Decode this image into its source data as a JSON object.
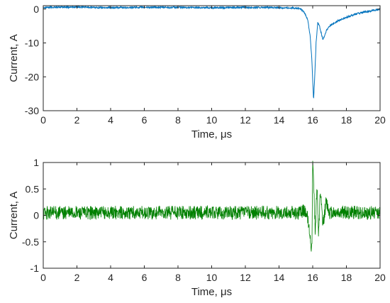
{
  "chart_data": [
    {
      "type": "line",
      "xlabel": "Time, μs",
      "ylabel": "Current, A",
      "xlim": [
        0,
        20
      ],
      "ylim": [
        -30,
        1
      ],
      "xticks": [
        0,
        2,
        4,
        6,
        8,
        10,
        12,
        14,
        16,
        18,
        20
      ],
      "yticks": [
        0,
        -10,
        -20,
        -30
      ],
      "grid": false,
      "series": [
        {
          "color": "#0072BD",
          "x": [
            0,
            2,
            4,
            6,
            8,
            10,
            12,
            14,
            15.0,
            15.3,
            15.5,
            15.7,
            15.85,
            15.95,
            16.05,
            16.12,
            16.2,
            16.3,
            16.4,
            16.5,
            16.6,
            16.7,
            16.8,
            17.0,
            17.5,
            18.0,
            18.5,
            19.0,
            19.5,
            20.0
          ],
          "y": [
            0.5,
            0.6,
            0.4,
            0.5,
            0.5,
            0.4,
            0.5,
            0.4,
            0.3,
            0.0,
            -1.0,
            -3.0,
            -8.0,
            -15.0,
            -27.0,
            -20.0,
            -10.0,
            -4.0,
            -5.0,
            -7.0,
            -9.0,
            -8.0,
            -6.5,
            -5.0,
            -3.5,
            -2.5,
            -1.5,
            -1.0,
            -0.5,
            0.0
          ]
        }
      ]
    },
    {
      "type": "line",
      "xlabel": "Time, μs",
      "ylabel": "Current, A",
      "xlim": [
        0,
        20
      ],
      "ylim": [
        -1,
        1
      ],
      "xticks": [
        0,
        2,
        4,
        6,
        8,
        10,
        12,
        14,
        16,
        18,
        20
      ],
      "yticks": [
        1,
        0.5,
        0,
        -0.5,
        -1
      ],
      "grid": false,
      "series": [
        {
          "color": "#008000",
          "x": [
            0,
            2,
            4,
            6,
            8,
            10,
            12,
            14,
            15.2,
            15.6,
            15.8,
            15.95,
            16.0,
            16.05,
            16.15,
            16.25,
            16.35,
            16.45,
            16.6,
            16.8,
            17.0,
            17.5,
            18,
            19,
            20
          ],
          "y": [
            0.05,
            0.05,
            0.05,
            0.05,
            0.05,
            0.05,
            0.05,
            0.05,
            0.05,
            0.1,
            -0.25,
            -0.65,
            0.97,
            0.7,
            -0.35,
            0.6,
            -0.4,
            0.45,
            -0.2,
            0.25,
            0.05,
            0.05,
            0.05,
            0.05,
            0.05
          ],
          "noise_amplitude": 0.13
        }
      ]
    }
  ]
}
